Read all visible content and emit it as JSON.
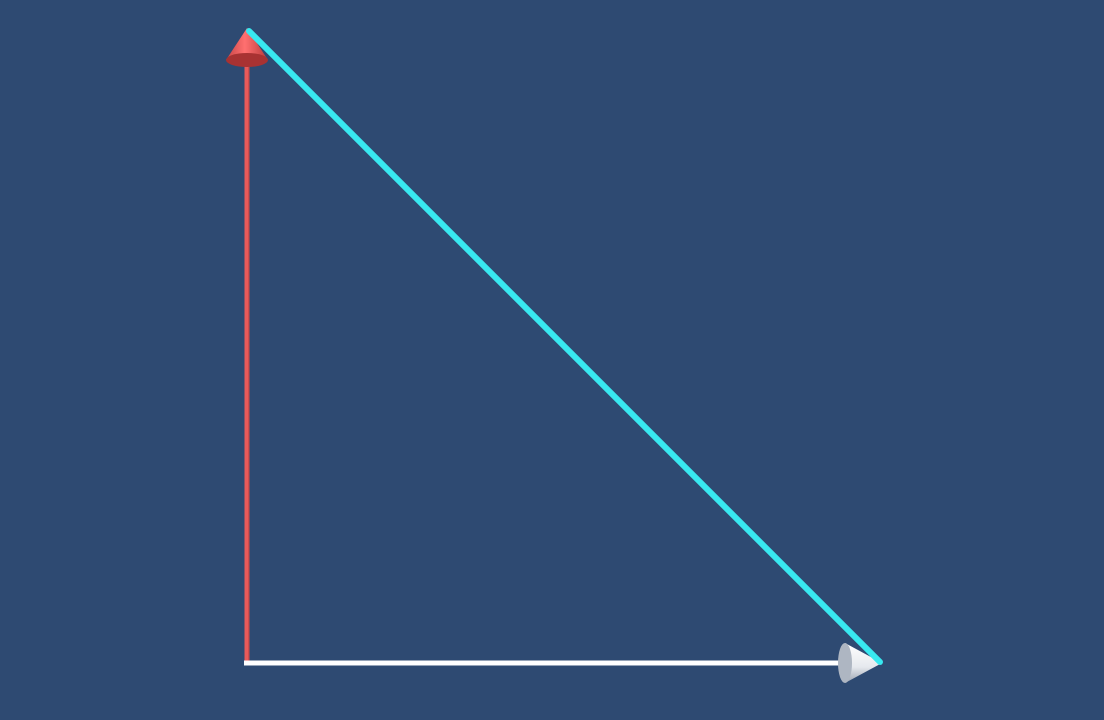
{
  "scene": {
    "background_color": "#2e4a72",
    "vectors": [
      {
        "name": "vertical-vector",
        "color": "#e85a5a",
        "head": "cone"
      },
      {
        "name": "horizontal-vector",
        "color": "#ffffff",
        "head": "cone"
      },
      {
        "name": "hypotenuse-line",
        "color": "#38e8f0",
        "head": "none"
      }
    ]
  }
}
